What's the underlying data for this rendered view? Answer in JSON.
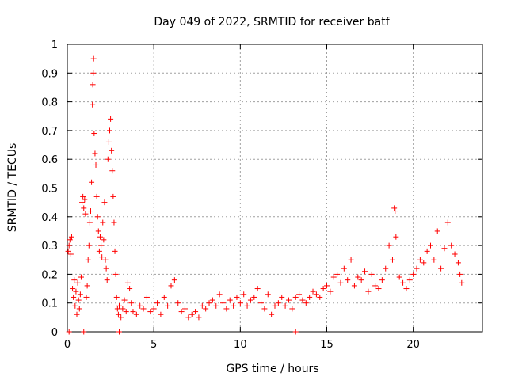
{
  "chart_data": {
    "type": "scatter",
    "title": "Day 049 of 2022, SRMTID for receiver batf",
    "xlabel": "GPS time / hours",
    "ylabel": "SRMTID / TECUs",
    "xlim": [
      0,
      24
    ],
    "ylim": [
      0,
      1
    ],
    "x_ticks": [
      0,
      5,
      10,
      15,
      20
    ],
    "y_ticks": [
      0,
      0.1,
      0.2,
      0.3,
      0.4,
      0.5,
      0.6,
      0.7,
      0.8,
      0.9,
      1
    ],
    "grid": true,
    "marker": "+",
    "series_color": "#ff0000",
    "series": [
      {
        "name": "SRMTID",
        "points": [
          [
            0.05,
            0.28
          ],
          [
            0.1,
            0.3
          ],
          [
            0.15,
            0.32
          ],
          [
            0.2,
            0.27
          ],
          [
            0.25,
            0.33
          ],
          [
            0.3,
            0.15
          ],
          [
            0.35,
            0.12
          ],
          [
            0.4,
            0.18
          ],
          [
            0.45,
            0.09
          ],
          [
            0.5,
            0.14
          ],
          [
            0.55,
            0.06
          ],
          [
            0.6,
            0.17
          ],
          [
            0.65,
            0.11
          ],
          [
            0.7,
            0.08
          ],
          [
            0.75,
            0.13
          ],
          [
            0.8,
            0.19
          ],
          [
            0.85,
            0.45
          ],
          [
            0.9,
            0.47
          ],
          [
            0.95,
            0.43
          ],
          [
            1.0,
            0.46
          ],
          [
            1.05,
            0.41
          ],
          [
            1.1,
            0.12
          ],
          [
            1.15,
            0.16
          ],
          [
            1.2,
            0.25
          ],
          [
            1.25,
            0.3
          ],
          [
            1.3,
            0.38
          ],
          [
            1.35,
            0.42
          ],
          [
            1.4,
            0.52
          ],
          [
            1.45,
            0.79
          ],
          [
            1.47,
            0.86
          ],
          [
            1.5,
            0.9
          ],
          [
            1.52,
            0.95
          ],
          [
            1.55,
            0.69
          ],
          [
            1.6,
            0.62
          ],
          [
            1.65,
            0.58
          ],
          [
            1.7,
            0.47
          ],
          [
            1.75,
            0.4
          ],
          [
            1.8,
            0.35
          ],
          [
            1.85,
            0.28
          ],
          [
            1.9,
            0.33
          ],
          [
            1.95,
            0.3
          ],
          [
            2.0,
            0.26
          ],
          [
            2.05,
            0.38
          ],
          [
            2.1,
            0.32
          ],
          [
            2.15,
            0.45
          ],
          [
            2.2,
            0.25
          ],
          [
            2.25,
            0.22
          ],
          [
            2.3,
            0.18
          ],
          [
            2.35,
            0.6
          ],
          [
            2.4,
            0.66
          ],
          [
            2.45,
            0.7
          ],
          [
            2.5,
            0.74
          ],
          [
            2.55,
            0.63
          ],
          [
            2.6,
            0.56
          ],
          [
            2.65,
            0.47
          ],
          [
            2.7,
            0.38
          ],
          [
            2.75,
            0.28
          ],
          [
            2.8,
            0.2
          ],
          [
            2.85,
            0.12
          ],
          [
            2.9,
            0.08
          ],
          [
            2.95,
            0.06
          ],
          [
            3.0,
            0.09
          ],
          [
            3.1,
            0.05
          ],
          [
            3.2,
            0.08
          ],
          [
            3.3,
            0.11
          ],
          [
            3.4,
            0.07
          ],
          [
            3.5,
            0.17
          ],
          [
            3.6,
            0.15
          ],
          [
            3.7,
            0.1
          ],
          [
            3.8,
            0.07
          ],
          [
            4.0,
            0.06
          ],
          [
            4.2,
            0.09
          ],
          [
            4.4,
            0.08
          ],
          [
            4.6,
            0.12
          ],
          [
            4.8,
            0.07
          ],
          [
            5.0,
            0.08
          ],
          [
            5.2,
            0.1
          ],
          [
            5.4,
            0.06
          ],
          [
            5.6,
            0.12
          ],
          [
            5.8,
            0.09
          ],
          [
            6.0,
            0.16
          ],
          [
            6.2,
            0.18
          ],
          [
            6.4,
            0.1
          ],
          [
            6.6,
            0.07
          ],
          [
            6.8,
            0.08
          ],
          [
            7.0,
            0.05
          ],
          [
            7.2,
            0.06
          ],
          [
            7.4,
            0.07
          ],
          [
            7.6,
            0.05
          ],
          [
            7.8,
            0.09
          ],
          [
            8.0,
            0.08
          ],
          [
            8.2,
            0.1
          ],
          [
            8.4,
            0.11
          ],
          [
            8.6,
            0.09
          ],
          [
            8.8,
            0.13
          ],
          [
            9.0,
            0.1
          ],
          [
            9.2,
            0.08
          ],
          [
            9.4,
            0.11
          ],
          [
            9.6,
            0.09
          ],
          [
            9.8,
            0.12
          ],
          [
            10.0,
            0.1
          ],
          [
            10.2,
            0.13
          ],
          [
            10.4,
            0.09
          ],
          [
            10.6,
            0.11
          ],
          [
            10.8,
            0.12
          ],
          [
            11.0,
            0.15
          ],
          [
            11.2,
            0.1
          ],
          [
            11.4,
            0.08
          ],
          [
            11.6,
            0.13
          ],
          [
            11.8,
            0.06
          ],
          [
            12.0,
            0.09
          ],
          [
            12.2,
            0.1
          ],
          [
            12.4,
            0.12
          ],
          [
            12.6,
            0.09
          ],
          [
            12.8,
            0.11
          ],
          [
            13.0,
            0.08
          ],
          [
            13.2,
            0.12
          ],
          [
            13.4,
            0.13
          ],
          [
            13.6,
            0.11
          ],
          [
            13.8,
            0.1
          ],
          [
            14.0,
            0.12
          ],
          [
            14.2,
            0.14
          ],
          [
            14.4,
            0.13
          ],
          [
            14.6,
            0.12
          ],
          [
            14.8,
            0.15
          ],
          [
            15.0,
            0.16
          ],
          [
            15.2,
            0.14
          ],
          [
            15.4,
            0.19
          ],
          [
            15.6,
            0.2
          ],
          [
            15.8,
            0.17
          ],
          [
            16.0,
            0.22
          ],
          [
            16.2,
            0.18
          ],
          [
            16.4,
            0.25
          ],
          [
            16.6,
            0.16
          ],
          [
            16.8,
            0.19
          ],
          [
            17.0,
            0.18
          ],
          [
            17.2,
            0.21
          ],
          [
            17.4,
            0.14
          ],
          [
            17.6,
            0.2
          ],
          [
            17.8,
            0.16
          ],
          [
            18.0,
            0.15
          ],
          [
            18.2,
            0.18
          ],
          [
            18.4,
            0.22
          ],
          [
            18.6,
            0.3
          ],
          [
            18.8,
            0.25
          ],
          [
            18.9,
            0.43
          ],
          [
            18.95,
            0.42
          ],
          [
            19.0,
            0.33
          ],
          [
            19.2,
            0.19
          ],
          [
            19.4,
            0.17
          ],
          [
            19.6,
            0.15
          ],
          [
            19.8,
            0.18
          ],
          [
            20.0,
            0.2
          ],
          [
            20.2,
            0.22
          ],
          [
            20.4,
            0.25
          ],
          [
            20.6,
            0.24
          ],
          [
            20.8,
            0.28
          ],
          [
            21.0,
            0.3
          ],
          [
            21.2,
            0.25
          ],
          [
            21.4,
            0.35
          ],
          [
            21.6,
            0.22
          ],
          [
            21.8,
            0.29
          ],
          [
            22.0,
            0.38
          ],
          [
            22.2,
            0.3
          ],
          [
            22.4,
            0.27
          ],
          [
            22.6,
            0.24
          ],
          [
            22.7,
            0.2
          ],
          [
            22.8,
            0.17
          ],
          [
            0.1,
            0.0
          ],
          [
            0.95,
            0.0
          ],
          [
            3.0,
            0.0
          ],
          [
            13.2,
            0.0
          ]
        ]
      }
    ]
  }
}
